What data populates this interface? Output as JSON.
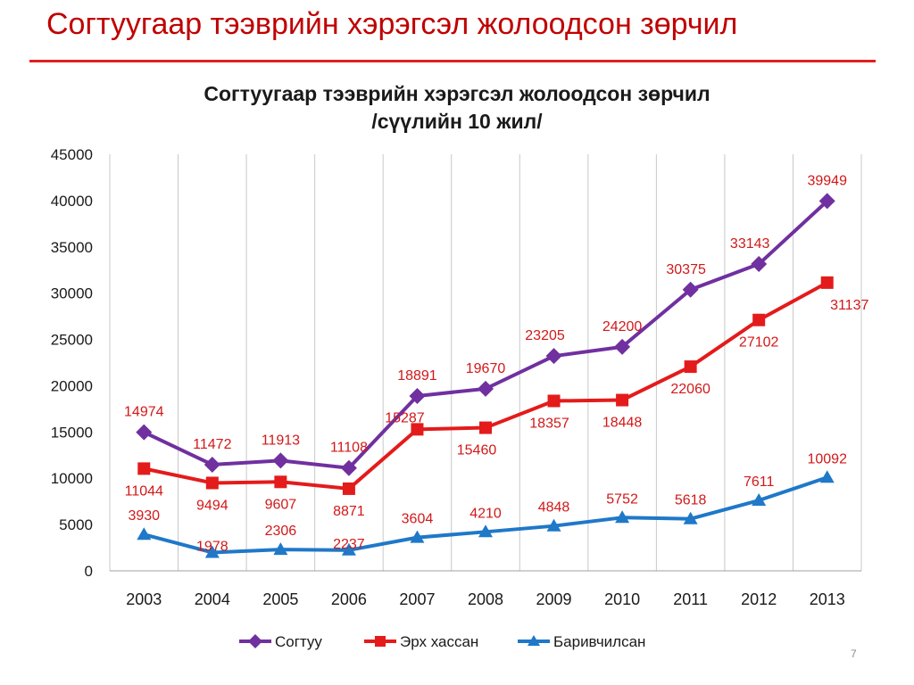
{
  "slide": {
    "title": "Согтуугаар тээврийн хэрэгсэл жолоодсон зөрчил",
    "page_number": "7"
  },
  "colors": {
    "title_red": "#c00000",
    "rule_red": "#e02020",
    "sogtuu": "#7030a0",
    "erkh_hassan": "#e41b1b",
    "barivchilsan": "#1f78c8"
  },
  "chart_data": {
    "type": "line",
    "title": "Согтуугаар тээврийн хэрэгсэл жолоодсон зөрчил",
    "subtitle": "/сүүлийн 10 жил/",
    "xlabel": "",
    "ylabel": "",
    "categories": [
      "2003",
      "2004",
      "2005",
      "2006",
      "2007",
      "2008",
      "2009",
      "2010",
      "2011",
      "2012",
      "2013"
    ],
    "ylim": [
      0,
      45000
    ],
    "yticks": [
      0,
      5000,
      10000,
      15000,
      20000,
      25000,
      30000,
      35000,
      40000,
      45000
    ],
    "grid": "vertical",
    "legend_position": "bottom",
    "series": [
      {
        "name": "Согтуу",
        "color": "#7030a0",
        "marker": "diamond",
        "values": [
          14974,
          11472,
          11913,
          11108,
          18891,
          19670,
          23205,
          24200,
          30375,
          33143,
          39949
        ]
      },
      {
        "name": "Эрх хассан",
        "color": "#e41b1b",
        "marker": "square",
        "values": [
          11044,
          9494,
          9607,
          8871,
          15287,
          15460,
          18357,
          18448,
          22060,
          27102,
          31137
        ]
      },
      {
        "name": "Баривчилсан",
        "color": "#1f78c8",
        "marker": "triangle",
        "values": [
          3930,
          1978,
          2306,
          2237,
          3604,
          4210,
          4848,
          5752,
          5618,
          7611,
          10092
        ]
      }
    ]
  }
}
